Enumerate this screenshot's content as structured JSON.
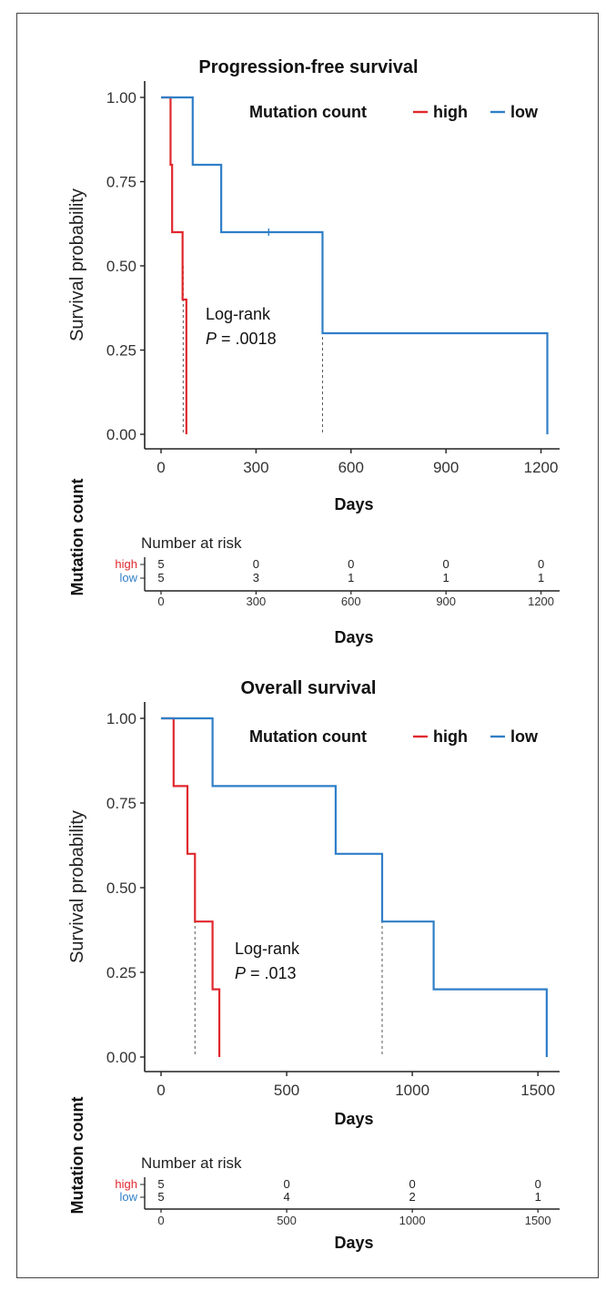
{
  "colors": {
    "high": "#e0282e",
    "low": "#2f7fc8",
    "axis": "#222222",
    "median": "#555555"
  },
  "chart_data": [
    {
      "type": "line",
      "chart_style": "kaplan-meier step",
      "title": "Progression-free survival",
      "xlabel": "Days",
      "ylabel": "Survival probability",
      "xlim": [
        0,
        1230
      ],
      "xticks": [
        0,
        300,
        600,
        900,
        1200
      ],
      "ylim": [
        0,
        1
      ],
      "yticks": [
        "0.00",
        "0.25",
        "0.50",
        "0.75",
        "1.00"
      ],
      "legend": {
        "title": "Mutation count",
        "placement": "top-right",
        "entries": [
          "high",
          "low"
        ]
      },
      "annotation": {
        "line1": "Log-rank",
        "p_italic": "P",
        "p_value": " = .0018"
      },
      "series": [
        {
          "name": "high",
          "color": "#e0282e",
          "steps": [
            [
              0,
              1.0
            ],
            [
              30,
              0.8
            ],
            [
              35,
              0.6
            ],
            [
              68,
              0.4
            ],
            [
              80,
              0.0
            ]
          ],
          "censored": []
        },
        {
          "name": "low",
          "color": "#2f7fc8",
          "steps": [
            [
              0,
              1.0
            ],
            [
              100,
              0.8
            ],
            [
              190,
              0.6
            ],
            [
              510,
              0.3
            ],
            [
              1220,
              0.0
            ]
          ],
          "censored": [
            [
              340,
              0.6
            ]
          ]
        }
      ],
      "median_lines": [
        70,
        510
      ],
      "risk_table": {
        "title": "Number at risk",
        "axis_title": "Mutation count",
        "xlabel": "Days",
        "times": [
          0,
          300,
          600,
          900,
          1200
        ],
        "rows": [
          {
            "label": "high",
            "values": [
              "5",
              "0",
              "0",
              "0",
              "0"
            ]
          },
          {
            "label": "low",
            "values": [
              "5",
              "3",
              "1",
              "1",
              "1"
            ]
          }
        ]
      }
    },
    {
      "type": "line",
      "chart_style": "kaplan-meier step",
      "title": "Overall survival",
      "xlabel": "Days",
      "ylabel": "Survival probability",
      "xlim": [
        0,
        1550
      ],
      "xticks": [
        0,
        500,
        1000,
        1500
      ],
      "ylim": [
        0,
        1
      ],
      "yticks": [
        "0.00",
        "0.25",
        "0.50",
        "0.75",
        "1.00"
      ],
      "legend": {
        "title": "Mutation count",
        "placement": "top-right",
        "entries": [
          "high",
          "low"
        ]
      },
      "annotation": {
        "line1": "Log-rank",
        "p_italic": "P",
        "p_value": " = .013"
      },
      "series": [
        {
          "name": "high",
          "color": "#e0282e",
          "steps": [
            [
              0,
              1.0
            ],
            [
              50,
              0.8
            ],
            [
              105,
              0.6
            ],
            [
              135,
              0.4
            ],
            [
              205,
              0.2
            ],
            [
              232,
              0.0
            ]
          ],
          "censored": []
        },
        {
          "name": "low",
          "color": "#2f7fc8",
          "steps": [
            [
              0,
              1.0
            ],
            [
              205,
              0.8
            ],
            [
              695,
              0.6
            ],
            [
              880,
              0.4
            ],
            [
              1085,
              0.2
            ],
            [
              1535,
              0.0
            ]
          ],
          "censored": []
        }
      ],
      "median_lines": [
        135,
        880
      ],
      "risk_table": {
        "title": "Number at risk",
        "axis_title": "Mutation count",
        "xlabel": "Days",
        "times": [
          0,
          500,
          1000,
          1500
        ],
        "rows": [
          {
            "label": "high",
            "values": [
              "5",
              "0",
              "0",
              "0"
            ]
          },
          {
            "label": "low",
            "values": [
              "5",
              "4",
              "2",
              "1"
            ]
          }
        ]
      }
    }
  ]
}
